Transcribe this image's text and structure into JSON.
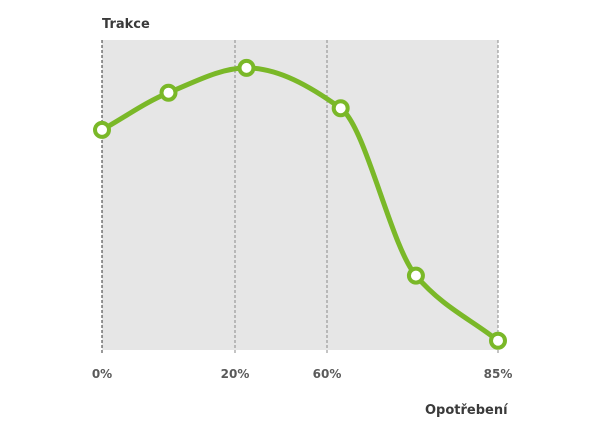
{
  "chart_data": {
    "type": "line",
    "title": "",
    "ylabel": "Trakce",
    "xlabel": "Opotřebení",
    "x_ticks": [
      {
        "value": 0,
        "label": "0%"
      },
      {
        "value": 20,
        "label": "20%"
      },
      {
        "value": 60,
        "label": "60%"
      },
      {
        "value": 85,
        "label": "85%"
      }
    ],
    "xlim": [
      0,
      85
    ],
    "ylim": [
      0,
      100
    ],
    "grid": "vertical dashed lines at tick positions",
    "smooth": true,
    "series": [
      {
        "points": [
          {
            "x": 0,
            "y": 71
          },
          {
            "x": 10,
            "y": 83
          },
          {
            "x": 25,
            "y": 91
          },
          {
            "x": 62,
            "y": 78
          },
          {
            "x": 73,
            "y": 24
          },
          {
            "x": 85,
            "y": 3
          }
        ]
      }
    ],
    "colors": {
      "plot_background": "#e6e6e6",
      "line": "#7ab828",
      "marker_fill": "#ffffff",
      "grid": "#8a8a8a",
      "axis_text": "#5a5a5a",
      "title_text": "#3a3a3a"
    }
  }
}
